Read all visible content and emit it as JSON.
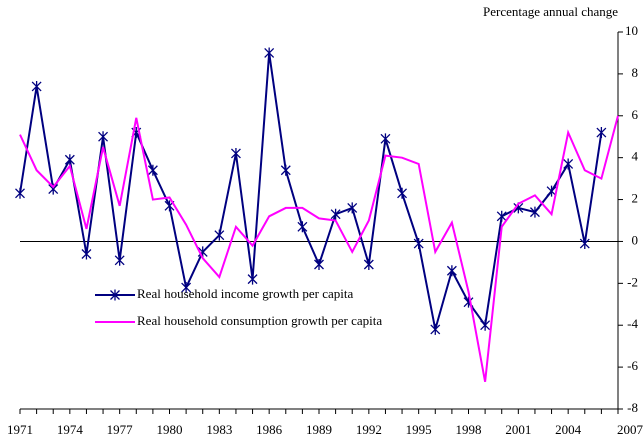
{
  "chart_data": {
    "type": "line",
    "y_axis_label": "Percentage annual change",
    "categories": [
      "1971",
      null,
      null,
      "1974",
      null,
      null,
      "1977",
      null,
      null,
      "1980",
      null,
      null,
      "1983",
      null,
      null,
      "1986",
      null,
      null,
      "1989",
      null,
      null,
      "1992",
      null,
      null,
      "1995",
      null,
      null,
      "1998",
      null,
      null,
      "2001",
      null,
      null,
      "2004",
      null,
      null,
      "2007"
    ],
    "series": [
      {
        "name": "Real household income growth per capita",
        "color": "#000080",
        "marker": "star",
        "values": [
          2.3,
          7.4,
          2.5,
          3.9,
          -0.6,
          5.0,
          -0.9,
          5.2,
          3.4,
          1.7,
          -2.2,
          -0.5,
          0.3,
          4.2,
          -1.8,
          9.0,
          3.4,
          0.7,
          -1.1,
          1.3,
          1.6,
          -1.1,
          4.9,
          2.3,
          -0.1,
          -4.2,
          -1.4,
          -2.9,
          -4.0,
          1.2,
          1.6,
          1.4,
          2.4,
          3.7,
          -0.1,
          5.2,
          null
        ]
      },
      {
        "name": "Real household consumption growth per capita",
        "color": "#ff00ff",
        "values": [
          5.1,
          3.4,
          2.6,
          3.6,
          0.6,
          4.5,
          1.7,
          5.9,
          2.0,
          2.1,
          0.8,
          -0.8,
          -1.7,
          0.7,
          -0.2,
          1.2,
          1.6,
          1.6,
          1.1,
          1.0,
          -0.5,
          1.0,
          4.1,
          4.0,
          3.7,
          -0.5,
          0.9,
          -2.4,
          -6.7,
          0.7,
          1.8,
          2.2,
          1.3,
          5.2,
          3.4,
          3.0,
          6.0
        ]
      }
    ],
    "ylim": [
      -8,
      10
    ],
    "yticks": [
      -8,
      -6,
      -4,
      -2,
      0,
      2,
      4,
      6,
      8,
      10
    ],
    "grid": false
  }
}
